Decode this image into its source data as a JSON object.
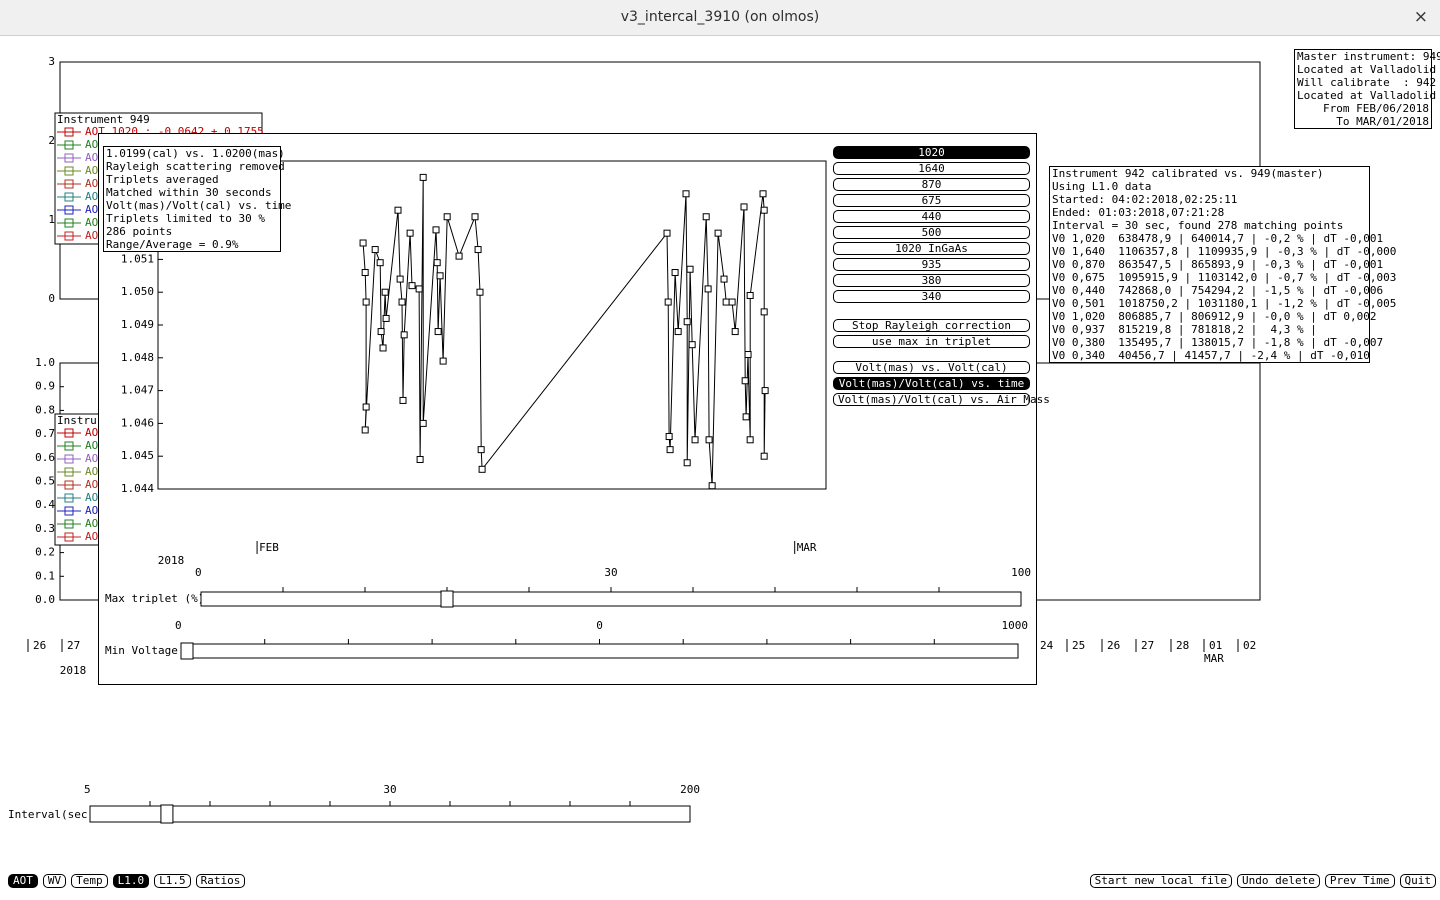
{
  "window": {
    "title": "v3_intercal_3910 (on olmos)",
    "close": "×"
  },
  "master_box": [
    "Master instrument: 949",
    "Located at Valladolid",
    "Will calibrate  : 942",
    "Located at Valladolid",
    "From FEB/06/2018",
    "To MAR/01/2018"
  ],
  "upper_plot": {
    "ylim": [
      0,
      3
    ],
    "yticks": [
      0,
      1,
      2,
      3
    ],
    "legend_title": "Instrument 949",
    "legend": [
      {
        "text": "AOT 1020 :  -0.0642 + 0.1755",
        "color": "#c00000"
      },
      {
        "text": "AO",
        "color": "#208020"
      },
      {
        "text": "AO",
        "color": "#9060c0"
      },
      {
        "text": "AO",
        "color": "#6a8a20"
      },
      {
        "text": "AO",
        "color": "#b03020"
      },
      {
        "text": "AO",
        "color": "#208080"
      },
      {
        "text": "AO",
        "color": "#2020c0"
      },
      {
        "text": "AO",
        "color": "#208020"
      },
      {
        "text": "AO",
        "color": "#c02020"
      }
    ]
  },
  "lower_plot": {
    "ylim": [
      0,
      1
    ],
    "yticks": [
      {
        "value": 0,
        "label": "0.0"
      },
      0.1,
      0.2,
      0.3,
      0.4,
      0.5,
      0.6,
      0.7,
      0.8,
      0.9,
      {
        "value": 1,
        "label": "1.0"
      }
    ],
    "legend_title": "Instru",
    "legend": [
      {
        "text": "AO",
        "color": "#c00000"
      },
      {
        "text": "AO",
        "color": "#208020"
      },
      {
        "text": "AO",
        "color": "#9060c0"
      },
      {
        "text": "AO",
        "color": "#6a8a20"
      },
      {
        "text": "AO",
        "color": "#b03020"
      },
      {
        "text": "AO",
        "color": "#208080"
      },
      {
        "text": "AO",
        "color": "#2020c0"
      },
      {
        "text": "AO",
        "color": "#208020"
      },
      {
        "text": "AO",
        "color": "#c02020"
      }
    ],
    "xtick_labels": [
      "26",
      "27",
      "24",
      "25",
      "26",
      "27",
      "28",
      "01",
      "02"
    ],
    "month": "MAR",
    "year": "2018"
  },
  "info_box": [
    "1.0199(cal) vs. 1.0200(mas)",
    "Rayleigh scattering removed",
    "Triplets averaged",
    "Matched within 30 seconds",
    "Volt(mas)/Volt(cal) vs. time",
    "Triplets limited to 30 %",
    "286 points",
    "Range/Average = 0.9%"
  ],
  "chart_data": {
    "type": "scatter",
    "x": [
      5.52,
      5.63,
      5.68,
      5.68,
      5.63,
      6.15,
      6.41,
      6.46,
      6.56,
      6.67,
      6.72,
      7.34,
      7.45,
      7.55,
      7.6,
      7.66,
      7.97,
      8.07,
      8.44,
      8.49,
      8.65,
      8.65,
      9.32,
      9.38,
      9.43,
      9.53,
      9.69,
      9.9,
      10.52,
      11.35,
      11.51,
      11.61,
      11.67,
      11.72,
      21.35,
      21.41,
      21.46,
      21.51,
      21.77,
      21.93,
      22.34,
      22.4,
      22.4,
      22.55,
      22.66,
      22.81,
      23.39,
      23.49,
      23.54,
      23.7,
      24.01,
      24.32,
      24.43,
      24.74,
      24.9,
      25.36,
      25.42,
      25.47,
      25.57,
      25.68,
      25.68,
      26.35,
      26.41,
      26.41,
      26.41,
      26.46
    ],
    "values": [
      1.0515,
      1.0506,
      1.0497,
      1.0465,
      1.0458,
      1.0513,
      1.0509,
      1.0488,
      1.0483,
      1.05,
      1.0492,
      1.0525,
      1.0504,
      1.0497,
      1.0467,
      1.0487,
      1.0518,
      1.0502,
      1.0501,
      1.0449,
      1.0535,
      1.046,
      1.0519,
      1.0509,
      1.0488,
      1.0505,
      1.0479,
      1.0523,
      1.0511,
      1.0523,
      1.0513,
      1.05,
      1.0452,
      1.0446,
      1.0518,
      1.0497,
      1.0456,
      1.0452,
      1.0506,
      1.0488,
      1.053,
      1.0491,
      1.0448,
      1.0507,
      1.0484,
      1.0455,
      1.0523,
      1.0501,
      1.0455,
      1.0441,
      1.0518,
      1.0504,
      1.0497,
      1.0497,
      1.0488,
      1.0526,
      1.0473,
      1.0462,
      1.0481,
      1.0455,
      1.0499,
      1.053,
      1.0525,
      1.0494,
      1.045,
      1.047
    ],
    "xlim": [
      -5.16,
      29.63
    ],
    "ylim": [
      1.044,
      1.054
    ],
    "yticks": [
      1.044,
      1.045,
      1.046,
      1.047,
      1.048,
      1.049,
      {
        "value": 1.05,
        "label": "1.050"
      },
      1.051
    ],
    "xticks": [
      {
        "value": 0,
        "label": "FEB"
      },
      {
        "value": 28,
        "label": "MAR"
      }
    ],
    "xlabel": "2018"
  },
  "channel_buttons": [
    {
      "label": "1020",
      "selected": true
    },
    {
      "label": "1640",
      "selected": false
    },
    {
      "label": "870",
      "selected": false
    },
    {
      "label": "675",
      "selected": false
    },
    {
      "label": "440",
      "selected": false
    },
    {
      "label": "500",
      "selected": false
    },
    {
      "label": "1020 InGaAs",
      "selected": false
    },
    {
      "label": "935",
      "selected": false
    },
    {
      "label": "380",
      "selected": false
    },
    {
      "label": "340",
      "selected": false
    }
  ],
  "option_buttons": [
    {
      "label": "Stop Rayleigh correction",
      "selected": false
    },
    {
      "label": "use max in triplet",
      "selected": false
    }
  ],
  "plot_buttons": [
    {
      "label": "Volt(mas) vs. Volt(cal)",
      "selected": false
    },
    {
      "label": "Volt(mas)/Volt(cal) vs. time",
      "selected": true
    },
    {
      "label": "Volt(mas)/Volt(cal) vs. Air Mass",
      "selected": false
    }
  ],
  "sliders": [
    {
      "label": "Max triplet (%)",
      "min": 0,
      "max": 100,
      "value": 30
    },
    {
      "label": "Min Voltage",
      "min": 0,
      "max": 1000,
      "value": 0
    },
    {
      "label": "Interval(sec)",
      "min": 5,
      "max": 200,
      "value": 30
    }
  ],
  "calib_box": [
    "Instrument 942 calibrated vs. 949(master)",
    "Using L1.0 data",
    "Started: 04:02:2018,02:25:11",
    "Ended: 01:03:2018,07:21:28",
    "Interval = 30 sec, found 278 matching points",
    "V0 1,020  638478,9 | 640014,7 | -0,2 % | dT -0,001",
    "V0 1,640  1106357,8 | 1109935,9 | -0,3 % | dT -0,000",
    "V0 0,870  863547,5 | 865893,9 | -0,3 % | dT -0,001",
    "V0 0,675  1095915,9 | 1103142,0 | -0,7 % | dT -0,003",
    "V0 0,440  742868,0 | 754294,2 | -1,5 % | dT -0,006",
    "V0 0,501  1018750,2 | 1031180,1 | -1,2 % | dT -0,005",
    "V0 1,020  806885,7 | 806912,9 | -0,0 % | dT 0,002",
    "V0 0,937  815219,8 | 781818,2 |  4,3 % |",
    "V0 0,380  135495,7 | 138015,7 | -1,8 % | dT -0,007",
    "V0 0,340  40456,7 | 41457,7 | -2,4 % | dT -0,010"
  ],
  "bottom_left": [
    {
      "label": "AOT",
      "selected": true
    },
    {
      "label": "WV",
      "selected": false
    },
    {
      "label": "Temp",
      "selected": false
    },
    {
      "label": "L1.0",
      "selected": true
    },
    {
      "label": "L1.5",
      "selected": false
    },
    {
      "label": "Ratios",
      "selected": false
    }
  ],
  "bottom_right": [
    {
      "label": "Start new local file",
      "selected": false
    },
    {
      "label": "Undo delete",
      "selected": false
    },
    {
      "label": "Prev Time",
      "selected": false
    },
    {
      "label": "Quit",
      "selected": false
    }
  ]
}
